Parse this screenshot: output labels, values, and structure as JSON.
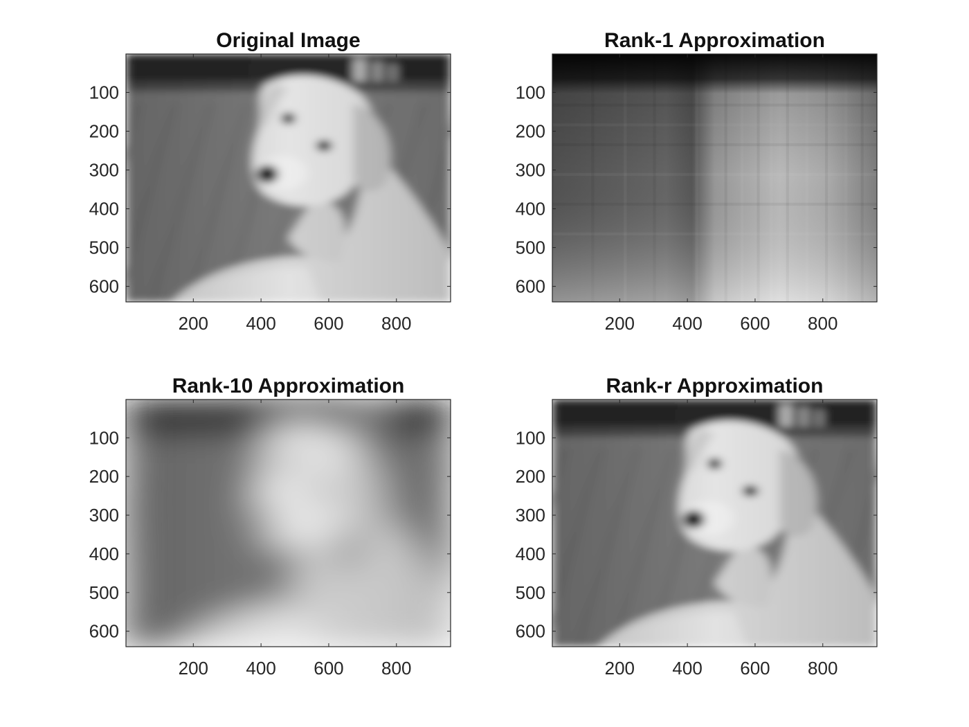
{
  "chart_data": [
    {
      "type": "image",
      "title": "Original Image",
      "xlim": [
        1,
        960
      ],
      "ylim": [
        1,
        640
      ],
      "y_direction": "reversed",
      "xticks": [
        200,
        400,
        600,
        800
      ],
      "yticks": [
        100,
        200,
        300,
        400,
        500,
        600
      ],
      "colormap": "gray",
      "content": "sharp"
    },
    {
      "type": "image",
      "title": "Rank-1 Approximation",
      "xlim": [
        1,
        960
      ],
      "ylim": [
        1,
        640
      ],
      "y_direction": "reversed",
      "xticks": [
        200,
        400,
        600,
        800
      ],
      "yticks": [
        100,
        200,
        300,
        400,
        500,
        600
      ],
      "colormap": "gray",
      "content": "rank1"
    },
    {
      "type": "image",
      "title": "Rank-10 Approximation",
      "xlim": [
        1,
        960
      ],
      "ylim": [
        1,
        640
      ],
      "y_direction": "reversed",
      "xticks": [
        200,
        400,
        600,
        800
      ],
      "yticks": [
        100,
        200,
        300,
        400,
        500,
        600
      ],
      "colormap": "gray",
      "content": "blocky"
    },
    {
      "type": "image",
      "title": "Rank-r Approximation",
      "xlim": [
        1,
        960
      ],
      "ylim": [
        1,
        640
      ],
      "y_direction": "reversed",
      "xticks": [
        200,
        400,
        600,
        800
      ],
      "yticks": [
        100,
        200,
        300,
        400,
        500,
        600
      ],
      "colormap": "gray",
      "content": "sharp"
    }
  ]
}
